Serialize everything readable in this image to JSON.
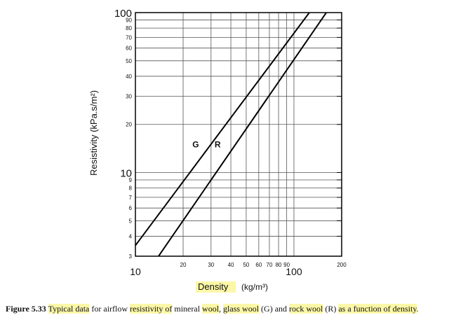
{
  "chart_data": {
    "type": "line",
    "xscale": "log",
    "yscale": "log",
    "xlim": [
      10,
      200
    ],
    "ylim": [
      3,
      100
    ],
    "xlabel": "Density",
    "xlabel_unit": "(kg/m³)",
    "ylabel": "Resistivity (kPa.s/m²)",
    "x_ticks_major": [
      {
        "v": 10,
        "label": "10"
      },
      {
        "v": 100,
        "label": "100"
      }
    ],
    "x_ticks_minor": [
      {
        "v": 20,
        "label": "20"
      },
      {
        "v": 30,
        "label": "30"
      },
      {
        "v": 40,
        "label": "40"
      },
      {
        "v": 50,
        "label": "50"
      },
      {
        "v": 60,
        "label": "60"
      },
      {
        "v": 70,
        "label": "70"
      },
      {
        "v": 80,
        "label": "80"
      },
      {
        "v": 90,
        "label": "90"
      },
      {
        "v": 200,
        "label": "200"
      }
    ],
    "y_ticks_major": [
      {
        "v": 10,
        "label": "10"
      },
      {
        "v": 100,
        "label": "100"
      }
    ],
    "y_ticks_minor": [
      {
        "v": 3,
        "label": "3"
      },
      {
        "v": 4,
        "label": "4"
      },
      {
        "v": 5,
        "label": "5"
      },
      {
        "v": 6,
        "label": "6"
      },
      {
        "v": 7,
        "label": "7"
      },
      {
        "v": 8,
        "label": "8"
      },
      {
        "v": 9,
        "label": "9"
      },
      {
        "v": 20,
        "label": "20"
      },
      {
        "v": 30,
        "label": "30"
      },
      {
        "v": 40,
        "label": "40"
      },
      {
        "v": 50,
        "label": "50"
      },
      {
        "v": 60,
        "label": "60"
      },
      {
        "v": 70,
        "label": "70"
      },
      {
        "v": 80,
        "label": "80"
      },
      {
        "v": 90,
        "label": "90"
      }
    ],
    "grid": true,
    "series": [
      {
        "name": "G",
        "label_at": [
          24,
          15
        ],
        "points": [
          [
            10,
            3.5
          ],
          [
            125,
            100
          ]
        ]
      },
      {
        "name": "R",
        "label_at": [
          33,
          15
        ],
        "points": [
          [
            14,
            3
          ],
          [
            160,
            100
          ]
        ]
      }
    ]
  },
  "caption": {
    "prefix": "Figure 5.33",
    "segments": [
      {
        "text": " ",
        "hl": false
      },
      {
        "text": "Typical data",
        "hl": true
      },
      {
        "text": " for airflow ",
        "hl": false
      },
      {
        "text": "resistivity of",
        "hl": true
      },
      {
        "text": " mineral ",
        "hl": false
      },
      {
        "text": "wool",
        "hl": true
      },
      {
        "text": ", ",
        "hl": false
      },
      {
        "text": "glass wool",
        "hl": true
      },
      {
        "text": " (G) and ",
        "hl": false
      },
      {
        "text": "rock wool",
        "hl": true
      },
      {
        "text": " (R) ",
        "hl": false
      },
      {
        "text": "as a function of density",
        "hl": true
      },
      {
        "text": ".",
        "hl": false
      }
    ]
  },
  "colors": {
    "line": "#000000",
    "grid": "#555555",
    "highlight": "#fbf7a8"
  }
}
